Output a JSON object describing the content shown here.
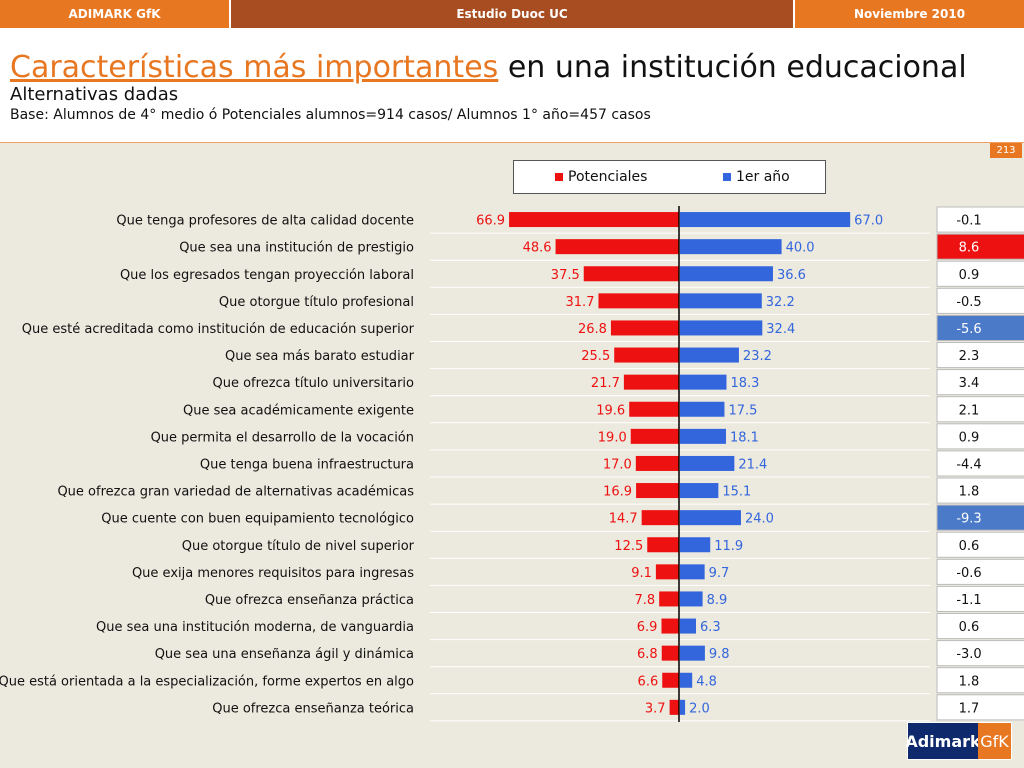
{
  "header": {
    "left": "ADIMARK GfK",
    "center": "Estudio Duoc UC",
    "right": "Noviembre 2010"
  },
  "title": {
    "highlight": "Características más importantes",
    "rest": " en una institución educacional",
    "subtitle": "Alternativas dadas",
    "base": "Base: Alumnos de 4° medio ó Potenciales alumnos=914 casos/ Alumnos 1° año=457 casos"
  },
  "page_number": "213",
  "logo": {
    "left": "Adimark",
    "right": "GfK"
  },
  "colors": {
    "potenciales": "#ee1111",
    "primer_anio": "#3366dd",
    "diff_positive": "#ee1111",
    "diff_negative": "#4a7ac8",
    "orange": "#e87722"
  },
  "chart_data": {
    "type": "bar",
    "orientation": "horizontal-diverging",
    "categories": [
      "Que tenga profesores de alta calidad docente",
      "Que sea una institución de prestigio",
      "Que los egresados tengan proyección laboral",
      "Que otorgue título profesional",
      "Que esté acreditada como institución de educación superior",
      "Que sea más barato estudiar",
      "Que ofrezca título universitario",
      "Que sea académicamente exigente",
      "Que permita el desarrollo de la vocación",
      "Que tenga buena infraestructura",
      "Que ofrezca gran variedad de alternativas académicas",
      "Que cuente con buen equipamiento tecnológico",
      "Que otorgue título de nivel superior",
      "Que exija menores requisitos para ingresas",
      "Que ofrezca enseñanza práctica",
      "Que sea una institución moderna, de vanguardia",
      "Que sea una enseñanza ágil y dinámica",
      "Que está orientada a la especialización, forme expertos en algo",
      "Que ofrezca enseñanza teórica"
    ],
    "series": [
      {
        "name": "Potenciales",
        "values": [
          66.9,
          48.6,
          37.5,
          31.7,
          26.8,
          25.5,
          21.7,
          19.6,
          19.0,
          17.0,
          16.9,
          14.7,
          12.5,
          9.1,
          7.8,
          6.9,
          6.8,
          6.6,
          3.7
        ]
      },
      {
        "name": "1er año",
        "values": [
          67.0,
          40.0,
          36.6,
          32.2,
          32.4,
          23.2,
          18.3,
          17.5,
          18.1,
          21.4,
          15.1,
          24.0,
          11.9,
          9.7,
          8.9,
          6.3,
          9.8,
          4.8,
          2.0
        ]
      }
    ],
    "differences": [
      "-0.1",
      "8.6",
      "0.9",
      "-0.5",
      "-5.6",
      "2.3",
      "3.4",
      "2.1",
      "0.9",
      "-4.4",
      "1.8",
      "-9.3",
      "0.6",
      "-0.6",
      "-1.1",
      "0.6",
      "-3.0",
      "1.8",
      "1.7"
    ],
    "highlighted_differences": [
      "8.6",
      "-5.6",
      "-9.3"
    ],
    "legend": "top",
    "grid": false
  }
}
